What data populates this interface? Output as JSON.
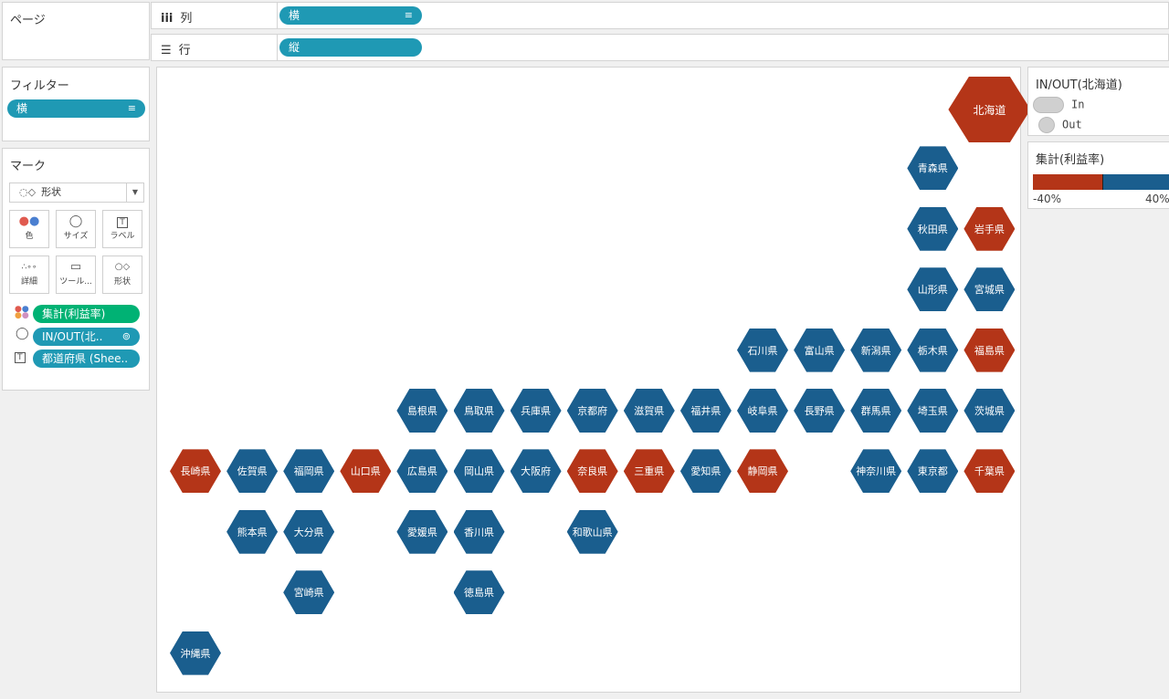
{
  "pages_panel": {
    "title": "ページ"
  },
  "shelves": {
    "columns": {
      "icon": "iii",
      "label": "列",
      "pill": "横"
    },
    "rows": {
      "icon": "☰",
      "label": "行",
      "pill": "縦"
    }
  },
  "filters": {
    "title": "フィルター",
    "pill": "横"
  },
  "marks": {
    "title": "マーク",
    "type": "形状",
    "buttons": [
      "色",
      "サイズ",
      "ラベル",
      "詳細",
      "ツール...",
      "形状"
    ],
    "fields": [
      "集計(利益率)",
      "IN/OUT(北..",
      "都道府県 (Shee.."
    ]
  },
  "legend_inout": {
    "title": "IN/OUT(北海道)",
    "items": [
      "In",
      "Out"
    ]
  },
  "legend_color": {
    "title": "集計(利益率)",
    "min_label": "-40%",
    "max_label": "40%"
  },
  "colors": {
    "positive": "#1a5e8e",
    "negative": "#b43518",
    "pill": "#1f99b4",
    "pill_green": "#00b274"
  },
  "chart_data": {
    "type": "tile map (hexagon)",
    "tiles": [
      {
        "name": "北海道",
        "col": 14,
        "row": 0,
        "status": "negative",
        "big": true
      },
      {
        "name": "青森県",
        "col": 13,
        "row": 1,
        "status": "positive"
      },
      {
        "name": "秋田県",
        "col": 13,
        "row": 2,
        "status": "positive"
      },
      {
        "name": "岩手県",
        "col": 14,
        "row": 2,
        "status": "negative"
      },
      {
        "name": "山形県",
        "col": 13,
        "row": 3,
        "status": "positive"
      },
      {
        "name": "宮城県",
        "col": 14,
        "row": 3,
        "status": "positive"
      },
      {
        "name": "石川県",
        "col": 10,
        "row": 4,
        "status": "positive"
      },
      {
        "name": "富山県",
        "col": 11,
        "row": 4,
        "status": "positive"
      },
      {
        "name": "新潟県",
        "col": 12,
        "row": 4,
        "status": "positive"
      },
      {
        "name": "栃木県",
        "col": 13,
        "row": 4,
        "status": "positive"
      },
      {
        "name": "福島県",
        "col": 14,
        "row": 4,
        "status": "negative"
      },
      {
        "name": "島根県",
        "col": 4,
        "row": 5,
        "status": "positive"
      },
      {
        "name": "鳥取県",
        "col": 5,
        "row": 5,
        "status": "positive"
      },
      {
        "name": "兵庫県",
        "col": 6,
        "row": 5,
        "status": "positive"
      },
      {
        "name": "京都府",
        "col": 7,
        "row": 5,
        "status": "positive"
      },
      {
        "name": "滋賀県",
        "col": 8,
        "row": 5,
        "status": "positive"
      },
      {
        "name": "福井県",
        "col": 9,
        "row": 5,
        "status": "positive"
      },
      {
        "name": "岐阜県",
        "col": 10,
        "row": 5,
        "status": "positive"
      },
      {
        "name": "長野県",
        "col": 11,
        "row": 5,
        "status": "positive"
      },
      {
        "name": "群馬県",
        "col": 12,
        "row": 5,
        "status": "positive"
      },
      {
        "name": "埼玉県",
        "col": 13,
        "row": 5,
        "status": "positive"
      },
      {
        "name": "茨城県",
        "col": 14,
        "row": 5,
        "status": "positive"
      },
      {
        "name": "長崎県",
        "col": 0,
        "row": 6,
        "status": "negative"
      },
      {
        "name": "佐賀県",
        "col": 1,
        "row": 6,
        "status": "positive"
      },
      {
        "name": "福岡県",
        "col": 2,
        "row": 6,
        "status": "positive"
      },
      {
        "name": "山口県",
        "col": 3,
        "row": 6,
        "status": "negative"
      },
      {
        "name": "広島県",
        "col": 4,
        "row": 6,
        "status": "positive"
      },
      {
        "name": "岡山県",
        "col": 5,
        "row": 6,
        "status": "positive"
      },
      {
        "name": "大阪府",
        "col": 6,
        "row": 6,
        "status": "positive"
      },
      {
        "name": "奈良県",
        "col": 7,
        "row": 6,
        "status": "negative"
      },
      {
        "name": "三重県",
        "col": 8,
        "row": 6,
        "status": "negative"
      },
      {
        "name": "愛知県",
        "col": 9,
        "row": 6,
        "status": "positive"
      },
      {
        "name": "静岡県",
        "col": 10,
        "row": 6,
        "status": "negative"
      },
      {
        "name": "神奈川県",
        "col": 12,
        "row": 6,
        "status": "positive"
      },
      {
        "name": "東京都",
        "col": 13,
        "row": 6,
        "status": "positive"
      },
      {
        "name": "千葉県",
        "col": 14,
        "row": 6,
        "status": "negative"
      },
      {
        "name": "熊本県",
        "col": 1,
        "row": 7,
        "status": "positive"
      },
      {
        "name": "大分県",
        "col": 2,
        "row": 7,
        "status": "positive"
      },
      {
        "name": "愛媛県",
        "col": 4,
        "row": 7,
        "status": "positive"
      },
      {
        "name": "香川県",
        "col": 5,
        "row": 7,
        "status": "positive"
      },
      {
        "name": "和歌山県",
        "col": 7,
        "row": 7,
        "status": "positive"
      },
      {
        "name": "宮崎県",
        "col": 2,
        "row": 8,
        "status": "positive"
      },
      {
        "name": "徳島県",
        "col": 5,
        "row": 8,
        "status": "positive"
      },
      {
        "name": "沖縄県",
        "col": 0,
        "row": 9,
        "status": "positive"
      }
    ]
  }
}
